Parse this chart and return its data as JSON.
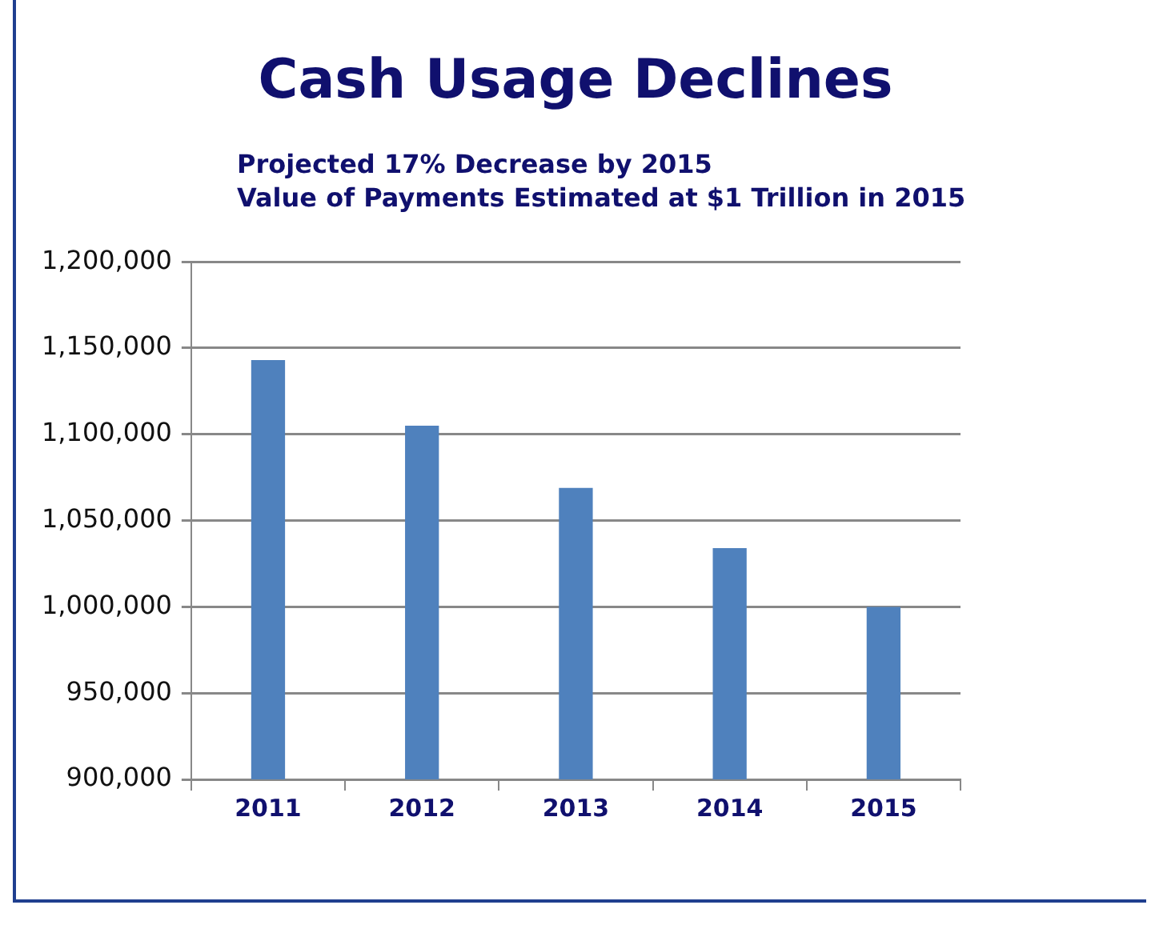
{
  "chart_data": {
    "type": "bar",
    "title": "Cash Usage Declines",
    "subtitle": "Projected 17% Decrease by 2015\nValue of Payments Estimated at $1 Trillion in 2015",
    "categories": [
      "2011",
      "2012",
      "2013",
      "2014",
      "2015"
    ],
    "values": [
      1143000,
      1105000,
      1069000,
      1034000,
      1000000
    ],
    "color": "#4f81bd",
    "ylim": [
      900000,
      1200000
    ],
    "yticks": [
      {
        "value": 900000,
        "label": "900,000"
      },
      {
        "value": 950000,
        "label": "950,000"
      },
      {
        "value": 1000000,
        "label": "1,000,000"
      },
      {
        "value": 1050000,
        "label": "1,050,000"
      },
      {
        "value": 1100000,
        "label": "1,100,000"
      },
      {
        "value": 1150000,
        "label": "1,150,000"
      },
      {
        "value": 1200000,
        "label": "1,200,000"
      }
    ],
    "grid": "y",
    "legend": false
  }
}
